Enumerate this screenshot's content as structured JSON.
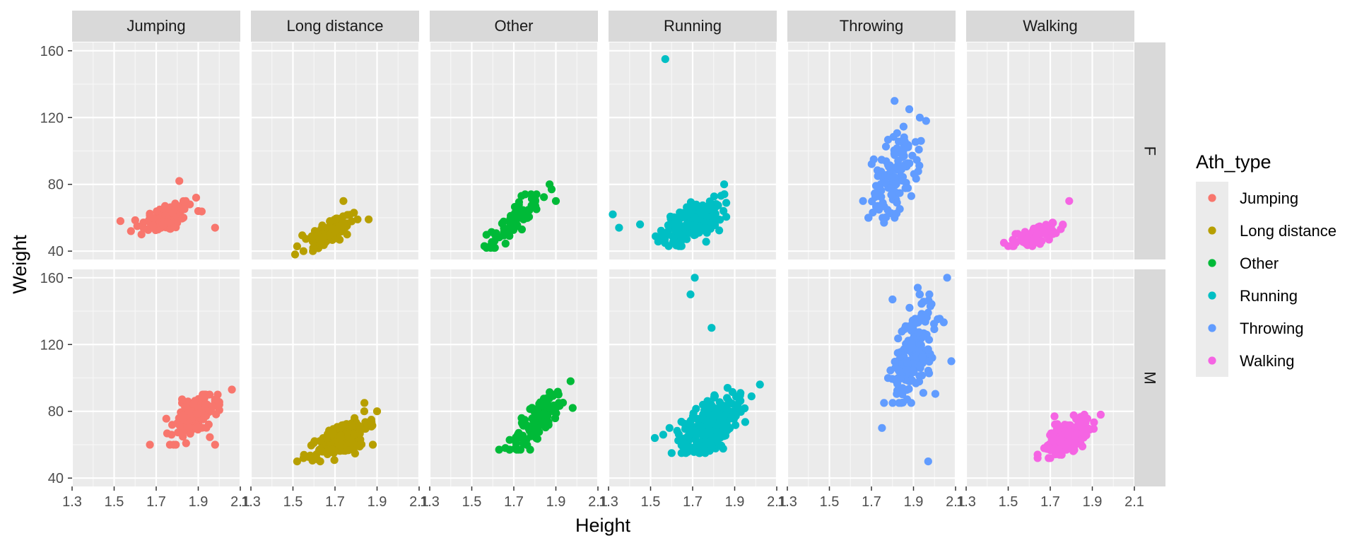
{
  "chart_data": {
    "type": "scatter",
    "xlabel": "Height",
    "ylabel": "Weight",
    "xlim": [
      1.3,
      2.1
    ],
    "ylim": [
      35,
      165
    ],
    "x_ticks": [
      1.3,
      1.5,
      1.7,
      1.9,
      2.1
    ],
    "x_tick_labels": [
      "1.3",
      "1.5",
      "1.7",
      "1.9",
      "2.1"
    ],
    "y_ticks": [
      40,
      80,
      120,
      160
    ],
    "y_tick_labels": [
      "40",
      "80",
      "120",
      "160"
    ],
    "grid": true,
    "legend": {
      "title": "Ath_type",
      "position": "right",
      "entries": [
        "Jumping",
        "Long distance",
        "Other",
        "Running",
        "Throwing",
        "Walking"
      ]
    },
    "facet_columns": [
      "Jumping",
      "Long distance",
      "Other",
      "Running",
      "Throwing",
      "Walking"
    ],
    "facet_rows": [
      "F",
      "M"
    ],
    "colors": {
      "Jumping": "#F8766D",
      "Long distance": "#B79F00",
      "Other": "#00BA38",
      "Running": "#00BFC4",
      "Throwing": "#619CFF",
      "Walking": "#F564E3"
    },
    "clusters": [
      {
        "sex": "F",
        "type": "Jumping",
        "points": [
          [
            1.53,
            58
          ],
          [
            1.58,
            52
          ],
          [
            1.61,
            55
          ],
          [
            1.63,
            50
          ],
          [
            1.81,
            82
          ],
          [
            1.98,
            54
          ],
          [
            1.89,
            72
          ],
          [
            1.86,
            68
          ],
          [
            1.9,
            64
          ]
        ],
        "cloud": {
          "n": 90,
          "x_mean": 1.75,
          "x_sd": 0.06,
          "y_mean": 60,
          "y_sd": 5,
          "corr": 0.5,
          "x_range": [
            1.6,
            1.92
          ],
          "y_range": [
            48,
            72
          ]
        }
      },
      {
        "sex": "F",
        "type": "Long distance",
        "points": [
          [
            1.51,
            38
          ],
          [
            1.55,
            40
          ],
          [
            1.74,
            70
          ],
          [
            1.86,
            59
          ],
          [
            1.79,
            63
          ]
        ],
        "cloud": {
          "n": 110,
          "x_mean": 1.68,
          "x_sd": 0.055,
          "y_mean": 52,
          "y_sd": 5,
          "corr": 0.55,
          "x_range": [
            1.52,
            1.82
          ],
          "y_range": [
            40,
            66
          ]
        }
      },
      {
        "sex": "F",
        "type": "Other",
        "points": [
          [
            1.56,
            43
          ],
          [
            1.59,
            42
          ],
          [
            1.61,
            42
          ],
          [
            1.87,
            80
          ],
          [
            1.88,
            77
          ],
          [
            1.9,
            70
          ]
        ],
        "cloud": {
          "n": 70,
          "x_mean": 1.7,
          "x_sd": 0.06,
          "y_mean": 58,
          "y_sd": 8,
          "corr": 0.8,
          "x_range": [
            1.57,
            1.86
          ],
          "y_range": [
            42,
            74
          ]
        }
      },
      {
        "sex": "F",
        "type": "Running",
        "points": [
          [
            1.57,
            155
          ],
          [
            1.32,
            62
          ],
          [
            1.35,
            54
          ],
          [
            1.45,
            56
          ],
          [
            1.85,
            80
          ],
          [
            1.78,
            68
          ]
        ],
        "cloud": {
          "n": 200,
          "x_mean": 1.7,
          "x_sd": 0.07,
          "y_mean": 57,
          "y_sd": 6,
          "corr": 0.55,
          "x_range": [
            1.48,
            1.86
          ],
          "y_range": [
            43,
            76
          ]
        }
      },
      {
        "sex": "F",
        "type": "Throwing",
        "points": [
          [
            1.81,
            130
          ],
          [
            1.88,
            125
          ],
          [
            1.93,
            120
          ],
          [
            1.76,
            57
          ],
          [
            1.66,
            70
          ]
        ],
        "cloud": {
          "n": 120,
          "x_mean": 1.81,
          "x_sd": 0.06,
          "y_mean": 85,
          "y_sd": 14,
          "corr": 0.5,
          "x_range": [
            1.63,
            1.96
          ],
          "y_range": [
            60,
            118
          ]
        }
      },
      {
        "sex": "F",
        "type": "Walking",
        "points": [
          [
            1.48,
            45
          ],
          [
            1.5,
            43
          ],
          [
            1.79,
            70
          ]
        ],
        "cloud": {
          "n": 70,
          "x_mean": 1.64,
          "x_sd": 0.05,
          "y_mean": 50,
          "y_sd": 3.5,
          "corr": 0.6,
          "x_range": [
            1.52,
            1.76
          ],
          "y_range": [
            43,
            60
          ]
        }
      },
      {
        "sex": "M",
        "type": "Jumping",
        "points": [
          [
            1.67,
            60
          ],
          [
            1.98,
            60
          ],
          [
            2.06,
            93
          ],
          [
            1.93,
            88
          ]
        ],
        "cloud": {
          "n": 150,
          "x_mean": 1.88,
          "x_sd": 0.055,
          "y_mean": 77,
          "y_sd": 6.5,
          "corr": 0.5,
          "x_range": [
            1.74,
            2.0
          ],
          "y_range": [
            60,
            90
          ]
        }
      },
      {
        "sex": "M",
        "type": "Long distance",
        "points": [
          [
            1.52,
            50
          ],
          [
            1.55,
            52
          ],
          [
            1.84,
            85
          ],
          [
            1.9,
            80
          ],
          [
            1.88,
            60
          ]
        ],
        "cloud": {
          "n": 200,
          "x_mean": 1.74,
          "x_sd": 0.06,
          "y_mean": 64,
          "y_sd": 6,
          "corr": 0.6,
          "x_range": [
            1.54,
            1.9
          ],
          "y_range": [
            50,
            80
          ]
        }
      },
      {
        "sex": "M",
        "type": "Other",
        "points": [
          [
            1.63,
            57
          ],
          [
            1.66,
            58
          ],
          [
            1.97,
            98
          ],
          [
            1.98,
            82
          ]
        ],
        "cloud": {
          "n": 110,
          "x_mean": 1.82,
          "x_sd": 0.07,
          "y_mean": 75,
          "y_sd": 11,
          "corr": 0.85,
          "x_range": [
            1.68,
            1.98
          ],
          "y_range": [
            57,
            98
          ]
        }
      },
      {
        "sex": "M",
        "type": "Running",
        "points": [
          [
            1.71,
            160
          ],
          [
            1.69,
            150
          ],
          [
            1.79,
            130
          ],
          [
            1.52,
            64
          ],
          [
            2.02,
            96
          ],
          [
            1.56,
            66
          ],
          [
            1.59,
            70
          ]
        ],
        "cloud": {
          "n": 300,
          "x_mean": 1.79,
          "x_sd": 0.07,
          "y_mean": 72,
          "y_sd": 8,
          "corr": 0.55,
          "x_range": [
            1.6,
            1.98
          ],
          "y_range": [
            55,
            98
          ]
        }
      },
      {
        "sex": "M",
        "type": "Throwing",
        "points": [
          [
            2.06,
            160
          ],
          [
            1.97,
            50
          ],
          [
            1.75,
            70
          ],
          [
            2.08,
            110
          ],
          [
            1.8,
            147
          ],
          [
            1.92,
            154
          ]
        ],
        "cloud": {
          "n": 180,
          "x_mean": 1.9,
          "x_sd": 0.05,
          "y_mean": 115,
          "y_sd": 15,
          "corr": 0.45,
          "x_range": [
            1.76,
            2.06
          ],
          "y_range": [
            85,
            150
          ]
        }
      },
      {
        "sex": "M",
        "type": "Walking",
        "points": [
          [
            1.64,
            52
          ],
          [
            1.94,
            78
          ],
          [
            1.72,
            77
          ]
        ],
        "cloud": {
          "n": 150,
          "x_mean": 1.78,
          "x_sd": 0.05,
          "y_mean": 65,
          "y_sd": 5.5,
          "corr": 0.6,
          "x_range": [
            1.64,
            1.92
          ],
          "y_range": [
            52,
            78
          ]
        }
      }
    ]
  }
}
